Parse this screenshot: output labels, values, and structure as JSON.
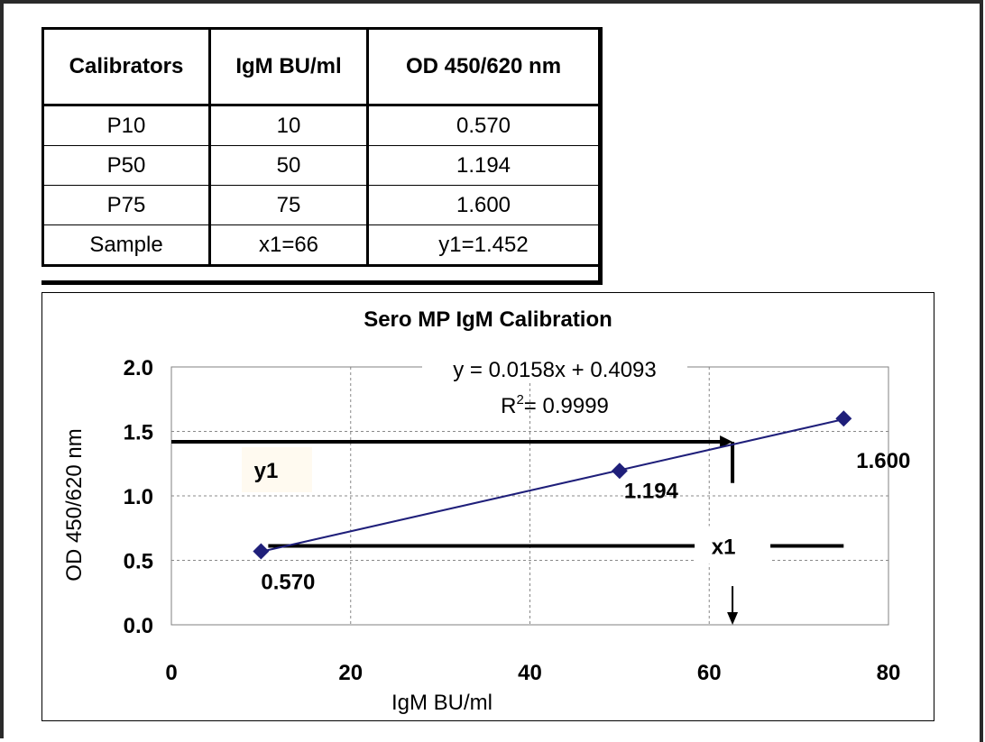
{
  "table": {
    "headers": [
      "Calibrators",
      "IgM BU/ml",
      "OD 450/620 nm"
    ],
    "rows": [
      [
        "P10",
        "10",
        "0.570"
      ],
      [
        "P50",
        "50",
        "1.194"
      ],
      [
        "P75",
        "75",
        "1.600"
      ],
      [
        "Sample",
        "x1=66",
        "y1=1.452"
      ]
    ]
  },
  "chart_data": {
    "type": "scatter",
    "title": "Sero MP IgM Calibration",
    "xlabel": "IgM BU/ml",
    "ylabel": "OD 450/620 nm",
    "xlim": [
      0,
      80
    ],
    "ylim": [
      0,
      2.0
    ],
    "x_ticks": [
      "0",
      "20",
      "40",
      "60",
      "80"
    ],
    "y_ticks": [
      "0.0",
      "0.5",
      "1.0",
      "1.5",
      "2.0"
    ],
    "grid": true,
    "series": [
      {
        "points": [
          {
            "x": 10,
            "y": 0.57,
            "label": "0.570"
          },
          {
            "x": 50,
            "y": 1.194,
            "label": "1.194"
          },
          {
            "x": 75,
            "y": 1.6,
            "label": "1.600"
          }
        ],
        "color": "#1f1f7a"
      }
    ],
    "trendline": {
      "slope": 0.0158,
      "intercept": 0.4093,
      "x_range": [
        10,
        75
      ]
    },
    "equation": "y = 0.0158x + 0.4093",
    "r_squared": {
      "prefix": "R",
      "sup": "2",
      "value": "= 0.9999"
    },
    "annotations": {
      "y1_label": "y1",
      "x1_label": "x1",
      "sample_y": 1.42,
      "sample_x": 62.6,
      "baseline_y": 0.57
    }
  }
}
